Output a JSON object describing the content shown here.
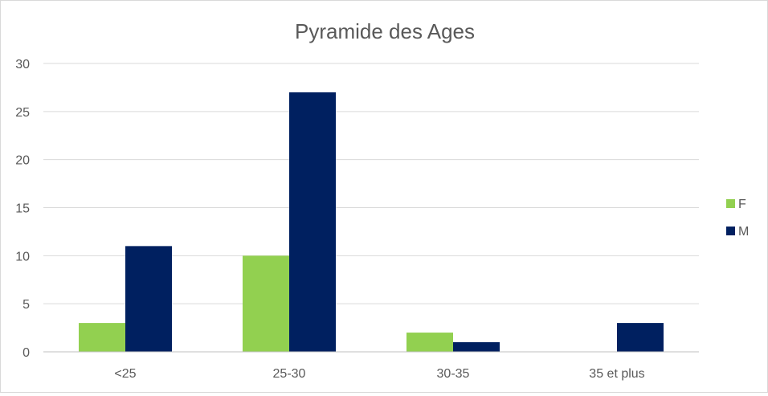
{
  "chart_data": {
    "type": "bar",
    "title": "Pyramide des Ages",
    "xlabel": "",
    "ylabel": "",
    "categories": [
      "<25",
      "25-30",
      "30-35",
      "35 et plus"
    ],
    "series": [
      {
        "name": "F",
        "values": [
          3,
          10,
          2,
          0
        ],
        "color": "#92d050"
      },
      {
        "name": "M",
        "values": [
          11,
          27,
          1,
          3
        ],
        "color": "#002060"
      }
    ],
    "ylim": [
      0,
      30
    ],
    "yticks": [
      0,
      5,
      10,
      15,
      20,
      25,
      30
    ],
    "grid": true,
    "legend_position": "right"
  }
}
